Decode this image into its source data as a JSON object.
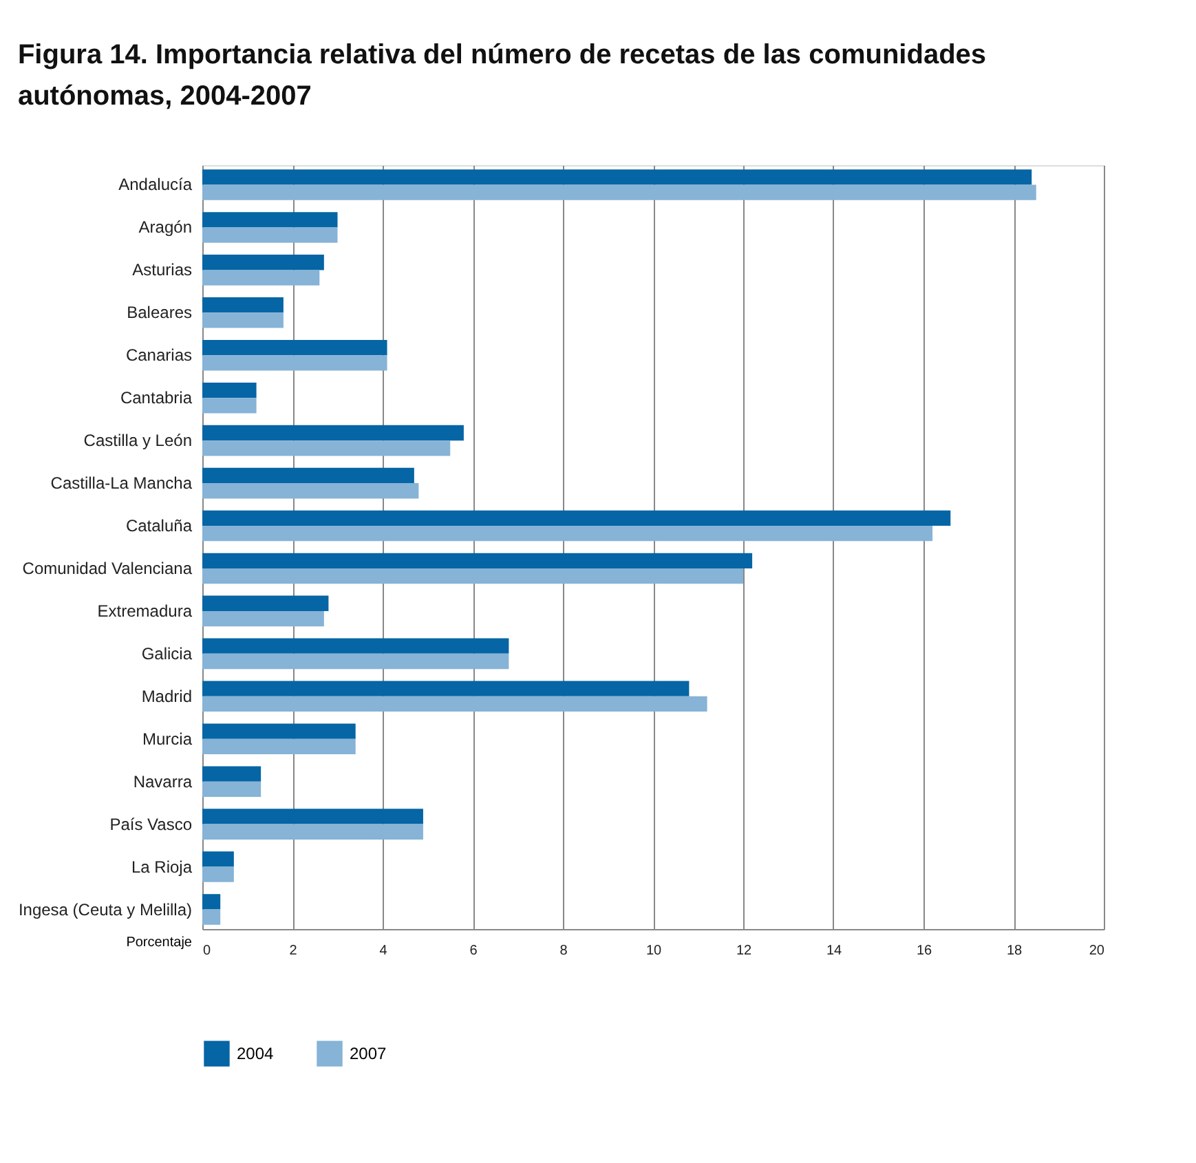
{
  "chart_data": {
    "type": "bar",
    "orientation": "horizontal",
    "title": "Figura 14. Importancia relativa del número de recetas de las comunidades autónomas, 2004-2007",
    "xlabel": "Porcentaje",
    "categories": [
      "Andalucía",
      "Aragón",
      "Asturias",
      "Baleares",
      "Canarias",
      "Cantabria",
      "Castilla y León",
      "Castilla-La Mancha",
      "Cataluña",
      "Comunidad Valenciana",
      "Extremadura",
      "Galicia",
      "Madrid",
      "Murcia",
      "Navarra",
      "País Vasco",
      "La Rioja",
      "Ingesa (Ceuta y Melilla)"
    ],
    "series": [
      {
        "name": "2004",
        "color": "#0565a5",
        "values": [
          18.4,
          3.0,
          2.7,
          1.8,
          4.1,
          1.2,
          5.8,
          4.7,
          16.6,
          12.2,
          2.8,
          6.8,
          10.8,
          3.4,
          1.3,
          4.9,
          0.7,
          0.4
        ]
      },
      {
        "name": "2007",
        "color": "#86b3d6",
        "values": [
          18.5,
          3.0,
          2.6,
          1.8,
          4.1,
          1.2,
          5.5,
          4.8,
          16.2,
          12.0,
          2.7,
          6.8,
          11.2,
          3.4,
          1.3,
          4.9,
          0.7,
          0.4
        ]
      }
    ],
    "xlim": [
      0,
      20
    ],
    "xticks": [
      0,
      2,
      4,
      6,
      8,
      10,
      12,
      14,
      16,
      18,
      20
    ],
    "grid": "x",
    "legend": "bottom left"
  }
}
